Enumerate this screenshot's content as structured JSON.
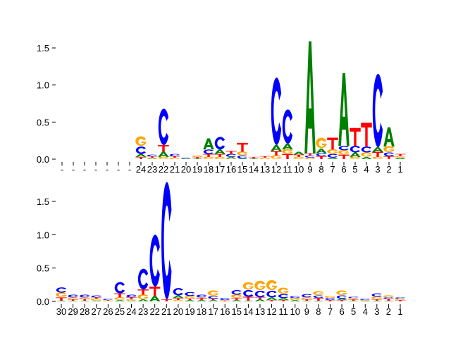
{
  "chart_data": [
    {
      "type": "sequence-logo",
      "ylim": [
        0,
        1.6
      ],
      "yticks": [
        "0.0",
        "0.5",
        "1.0",
        "1.5"
      ],
      "ytick_values": [
        0,
        0.5,
        1.0,
        1.5
      ],
      "grid": false,
      "xtick_labels": [
        "-",
        "-",
        "-",
        "-",
        "-",
        "-",
        "-",
        "24",
        "23",
        "22",
        "21",
        "20",
        "19",
        "18",
        "17",
        "16",
        "15",
        "14",
        "13",
        "12",
        "11",
        "10",
        "9",
        "8",
        "7",
        "6",
        "5",
        "4",
        "3",
        "2",
        "1"
      ],
      "stacks": [
        [],
        [],
        [],
        [],
        [],
        [],
        [],
        [
          [
            "T",
            0.03
          ],
          [
            "A",
            0.04
          ],
          [
            "C",
            0.1
          ],
          [
            "G",
            0.13
          ]
        ],
        [
          [
            "G",
            0.01
          ],
          [
            "A",
            0.01
          ],
          [
            "T",
            0.02
          ],
          [
            "C",
            0.02
          ]
        ],
        [
          [
            "G",
            0.03
          ],
          [
            "A",
            0.07
          ],
          [
            "T",
            0.09
          ],
          [
            "C",
            0.49
          ]
        ],
        [
          [
            "G",
            0.02
          ],
          [
            "T",
            0.02
          ],
          [
            "C",
            0.03
          ]
        ],
        [
          [
            "A",
            0.01
          ],
          [
            "C",
            0.01
          ]
        ],
        [
          [
            "A",
            0.01
          ],
          [
            "T",
            0.02
          ],
          [
            "G",
            0.02
          ]
        ],
        [
          [
            "G",
            0.03
          ],
          [
            "T",
            0.04
          ],
          [
            "C",
            0.06
          ],
          [
            "A",
            0.15
          ]
        ],
        [
          [
            "G",
            0.03
          ],
          [
            "T",
            0.04
          ],
          [
            "A",
            0.06
          ],
          [
            "C",
            0.17
          ]
        ],
        [
          [
            "G",
            0.01
          ],
          [
            "A",
            0.02
          ],
          [
            "C",
            0.04
          ],
          [
            "T",
            0.04
          ]
        ],
        [
          [
            "A",
            0.01
          ],
          [
            "C",
            0.04
          ],
          [
            "G",
            0.05
          ],
          [
            "T",
            0.12
          ]
        ],
        [
          [
            "A",
            0.01
          ],
          [
            "T",
            0.02
          ]
        ],
        [
          [
            "G",
            0.02
          ],
          [
            "T",
            0.02
          ]
        ],
        [
          [
            "G",
            0.05
          ],
          [
            "T",
            0.06
          ],
          [
            "A",
            0.08
          ],
          [
            "C",
            0.91
          ]
        ],
        [
          [
            "T",
            0.07
          ],
          [
            "G",
            0.06
          ],
          [
            "A",
            0.08
          ],
          [
            "C",
            0.46
          ]
        ],
        [
          [
            "G",
            0.03
          ],
          [
            "T",
            0.03
          ],
          [
            "A",
            0.04
          ]
        ],
        [
          [
            "G",
            0.02
          ],
          [
            "C",
            0.03
          ],
          [
            "T",
            0.03
          ],
          [
            "A",
            1.51
          ]
        ],
        [
          [
            "T",
            0.04
          ],
          [
            "C",
            0.04
          ],
          [
            "A",
            0.06
          ],
          [
            "G",
            0.14
          ]
        ],
        [
          [
            "A",
            0.02
          ],
          [
            "C",
            0.05
          ],
          [
            "G",
            0.06
          ],
          [
            "T",
            0.16
          ]
        ],
        [
          [
            "T",
            0.06
          ],
          [
            "G",
            0.06
          ],
          [
            "C",
            0.06
          ],
          [
            "A",
            0.98
          ]
        ],
        [
          [
            "G",
            0.03
          ],
          [
            "A",
            0.06
          ],
          [
            "C",
            0.09
          ],
          [
            "T",
            0.24
          ]
        ],
        [
          [
            "A",
            0.03
          ],
          [
            "G",
            0.06
          ],
          [
            "C",
            0.08
          ],
          [
            "T",
            0.32
          ]
        ],
        [
          [
            "G",
            0.03
          ],
          [
            "T",
            0.07
          ],
          [
            "A",
            0.06
          ],
          [
            "C",
            0.99
          ]
        ],
        [
          [
            "T",
            0.04
          ],
          [
            "C",
            0.05
          ],
          [
            "G",
            0.08
          ],
          [
            "A",
            0.26
          ]
        ],
        [
          [
            "A",
            0.02
          ],
          [
            "G",
            0.02
          ],
          [
            "T",
            0.03
          ]
        ]
      ]
    },
    {
      "type": "sequence-logo",
      "ylim": [
        0,
        1.8
      ],
      "yticks": [
        "0.0",
        "0.5",
        "1.0",
        "1.5"
      ],
      "ytick_values": [
        0,
        0.5,
        1.0,
        1.5
      ],
      "grid": false,
      "xtick_labels": [
        "30",
        "29",
        "28",
        "27",
        "26",
        "25",
        "24",
        "23",
        "22",
        "21",
        "20",
        "19",
        "18",
        "17",
        "16",
        "15",
        "14",
        "13",
        "12",
        "11",
        "10",
        "9",
        "8",
        "7",
        "6",
        "5",
        "4",
        "3",
        "2",
        "1"
      ],
      "stacks": [
        [
          [
            "A",
            0.01
          ],
          [
            "T",
            0.05
          ],
          [
            "G",
            0.07
          ],
          [
            "C",
            0.08
          ]
        ],
        [
          [
            "A",
            0.01
          ],
          [
            "T",
            0.02
          ],
          [
            "G",
            0.03
          ],
          [
            "C",
            0.04
          ]
        ],
        [
          [
            "A",
            0.01
          ],
          [
            "T",
            0.03
          ],
          [
            "G",
            0.02
          ],
          [
            "C",
            0.04
          ]
        ],
        [
          [
            "A",
            0.01
          ],
          [
            "G",
            0.03
          ],
          [
            "T",
            0.02
          ],
          [
            "C",
            0.03
          ]
        ],
        [
          [
            "G",
            0.01
          ],
          [
            "T",
            0.01
          ],
          [
            "C",
            0.02
          ]
        ],
        [
          [
            "A",
            0.02
          ],
          [
            "G",
            0.04
          ],
          [
            "T",
            0.06
          ],
          [
            "C",
            0.17
          ]
        ],
        [
          [
            "A",
            0.01
          ],
          [
            "G",
            0.02
          ],
          [
            "T",
            0.03
          ],
          [
            "C",
            0.04
          ]
        ],
        [
          [
            "A",
            0.03
          ],
          [
            "G",
            0.07
          ],
          [
            "T",
            0.08
          ],
          [
            "C",
            0.31
          ]
        ],
        [
          [
            "A",
            0.08
          ],
          [
            "T",
            0.14
          ],
          [
            "C",
            0.78
          ]
        ],
        [
          [
            "T",
            0.03
          ],
          [
            "C",
            1.76
          ]
        ],
        [
          [
            "G",
            0.02
          ],
          [
            "T",
            0.03
          ],
          [
            "A",
            0.04
          ],
          [
            "C",
            0.11
          ]
        ],
        [
          [
            "A",
            0.02
          ],
          [
            "T",
            0.02
          ],
          [
            "G",
            0.04
          ],
          [
            "C",
            0.06
          ]
        ],
        [
          [
            "A",
            0.02
          ],
          [
            "T",
            0.03
          ],
          [
            "G",
            0.01
          ],
          [
            "C",
            0.04
          ]
        ],
        [
          [
            "A",
            0.02
          ],
          [
            "T",
            0.02
          ],
          [
            "C",
            0.04
          ],
          [
            "G",
            0.08
          ]
        ],
        [
          [
            "T",
            0.01
          ],
          [
            "G",
            0.01
          ],
          [
            "C",
            0.03
          ]
        ],
        [
          [
            "A",
            0.02
          ],
          [
            "T",
            0.03
          ],
          [
            "G",
            0.05
          ],
          [
            "C",
            0.07
          ]
        ],
        [
          [
            "A",
            0.01
          ],
          [
            "T",
            0.06
          ],
          [
            "C",
            0.1
          ],
          [
            "G",
            0.11
          ]
        ],
        [
          [
            "A",
            0.03
          ],
          [
            "T",
            0.03
          ],
          [
            "C",
            0.1
          ],
          [
            "G",
            0.14
          ]
        ],
        [
          [
            "T",
            0.02
          ],
          [
            "A",
            0.04
          ],
          [
            "C",
            0.1
          ],
          [
            "G",
            0.15
          ]
        ],
        [
          [
            "T",
            0.02
          ],
          [
            "A",
            0.03
          ],
          [
            "C",
            0.06
          ],
          [
            "G",
            0.09
          ]
        ],
        [
          [
            "A",
            0.02
          ],
          [
            "G",
            0.03
          ],
          [
            "C",
            0.03
          ]
        ],
        [
          [
            "A",
            0.01
          ],
          [
            "T",
            0.02
          ],
          [
            "G",
            0.03
          ],
          [
            "C",
            0.05
          ]
        ],
        [
          [
            "A",
            0.01
          ],
          [
            "T",
            0.04
          ],
          [
            "C",
            0.04
          ],
          [
            "G",
            0.06
          ]
        ],
        [
          [
            "T",
            0.02
          ],
          [
            "C",
            0.03
          ],
          [
            "G",
            0.03
          ]
        ],
        [
          [
            "T",
            0.02
          ],
          [
            "A",
            0.02
          ],
          [
            "C",
            0.05
          ],
          [
            "G",
            0.07
          ]
        ],
        [
          [
            "A",
            0.01
          ],
          [
            "T",
            0.02
          ],
          [
            "G",
            0.02
          ],
          [
            "C",
            0.02
          ]
        ],
        [
          [
            "A",
            0.01
          ],
          [
            "G",
            0.01
          ],
          [
            "C",
            0.02
          ]
        ],
        [
          [
            "A",
            0.01
          ],
          [
            "T",
            0.02
          ],
          [
            "G",
            0.04
          ],
          [
            "C",
            0.05
          ]
        ],
        [
          [
            "A",
            0.01
          ],
          [
            "T",
            0.03
          ],
          [
            "C",
            0.02
          ],
          [
            "G",
            0.03
          ]
        ],
        [
          [
            "T",
            0.02
          ],
          [
            "G",
            0.02
          ],
          [
            "C",
            0.02
          ]
        ]
      ]
    }
  ],
  "colors": {
    "A": "#008000",
    "C": "#0000ff",
    "G": "#ffa500",
    "T": "#ff0000"
  }
}
